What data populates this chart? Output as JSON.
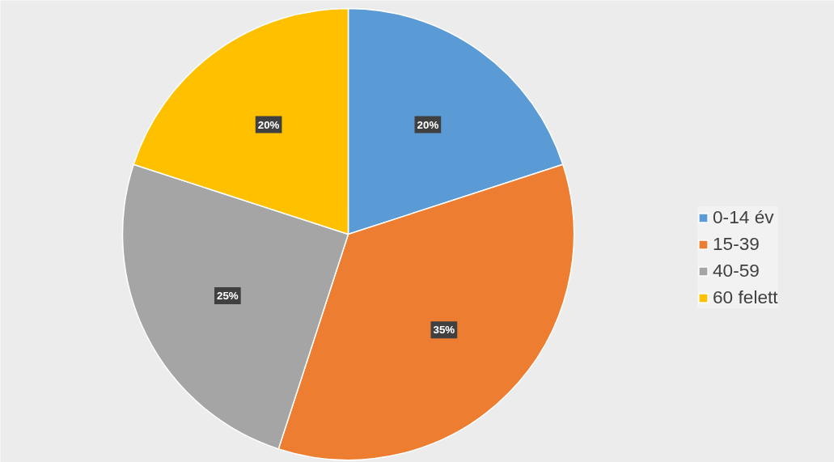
{
  "chart_data": {
    "type": "pie",
    "categories": [
      "0-14 év",
      "15-39",
      "40-59",
      "60 felett"
    ],
    "values": [
      20,
      35,
      25,
      20
    ],
    "colors": [
      "#5b9bd5",
      "#ed7d31",
      "#a5a5a5",
      "#ffc000"
    ],
    "value_labels": [
      "20%",
      "35%",
      "25%",
      "20%"
    ],
    "legend": "right"
  }
}
